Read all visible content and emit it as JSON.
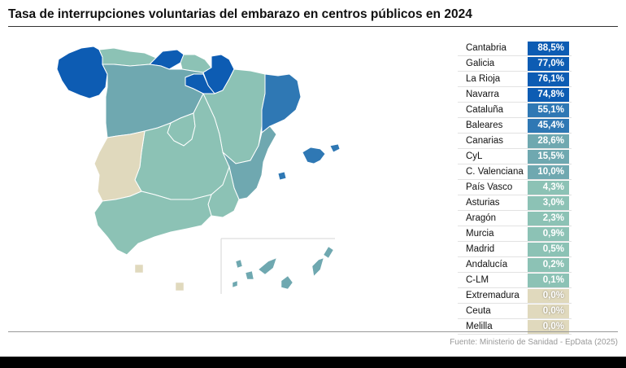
{
  "title": "Tasa de interrupciones voluntarias del embarazo en centros públicos en 2024",
  "source": "Fuente: Ministerio de Sanidad - EpData (2025)",
  "colors": {
    "very_high": "#0d5cb3",
    "high": "#2f78b4",
    "mid": "#6fa8b0",
    "low": "#8cc2b5",
    "zero": "#e0d9bd"
  },
  "regions": [
    {
      "name": "Cantabria",
      "value": "88,5%",
      "level": "very_high"
    },
    {
      "name": "Galicia",
      "value": "77,0%",
      "level": "very_high"
    },
    {
      "name": "La Rioja",
      "value": "76,1%",
      "level": "very_high"
    },
    {
      "name": "Navarra",
      "value": "74,8%",
      "level": "very_high"
    },
    {
      "name": "Cataluña",
      "value": "55,1%",
      "level": "high"
    },
    {
      "name": "Baleares",
      "value": "45,4%",
      "level": "high"
    },
    {
      "name": "Canarias",
      "value": "28,6%",
      "level": "mid"
    },
    {
      "name": "CyL",
      "value": "15,5%",
      "level": "mid"
    },
    {
      "name": "C. Valenciana",
      "value": "10,0%",
      "level": "mid"
    },
    {
      "name": "País Vasco",
      "value": "4,3%",
      "level": "low"
    },
    {
      "name": "Asturias",
      "value": "3,0%",
      "level": "low"
    },
    {
      "name": "Aragón",
      "value": "2,3%",
      "level": "low"
    },
    {
      "name": "Murcia",
      "value": "0,9%",
      "level": "low"
    },
    {
      "name": "Madrid",
      "value": "0,5%",
      "level": "low"
    },
    {
      "name": "Andalucía",
      "value": "0,2%",
      "level": "low"
    },
    {
      "name": "C-LM",
      "value": "0,1%",
      "level": "low"
    },
    {
      "name": "Extremadura",
      "value": "0,0%",
      "level": "zero"
    },
    {
      "name": "Ceuta",
      "value": "0,0%",
      "level": "zero"
    },
    {
      "name": "Melilla",
      "value": "0,0%",
      "level": "zero"
    }
  ]
}
